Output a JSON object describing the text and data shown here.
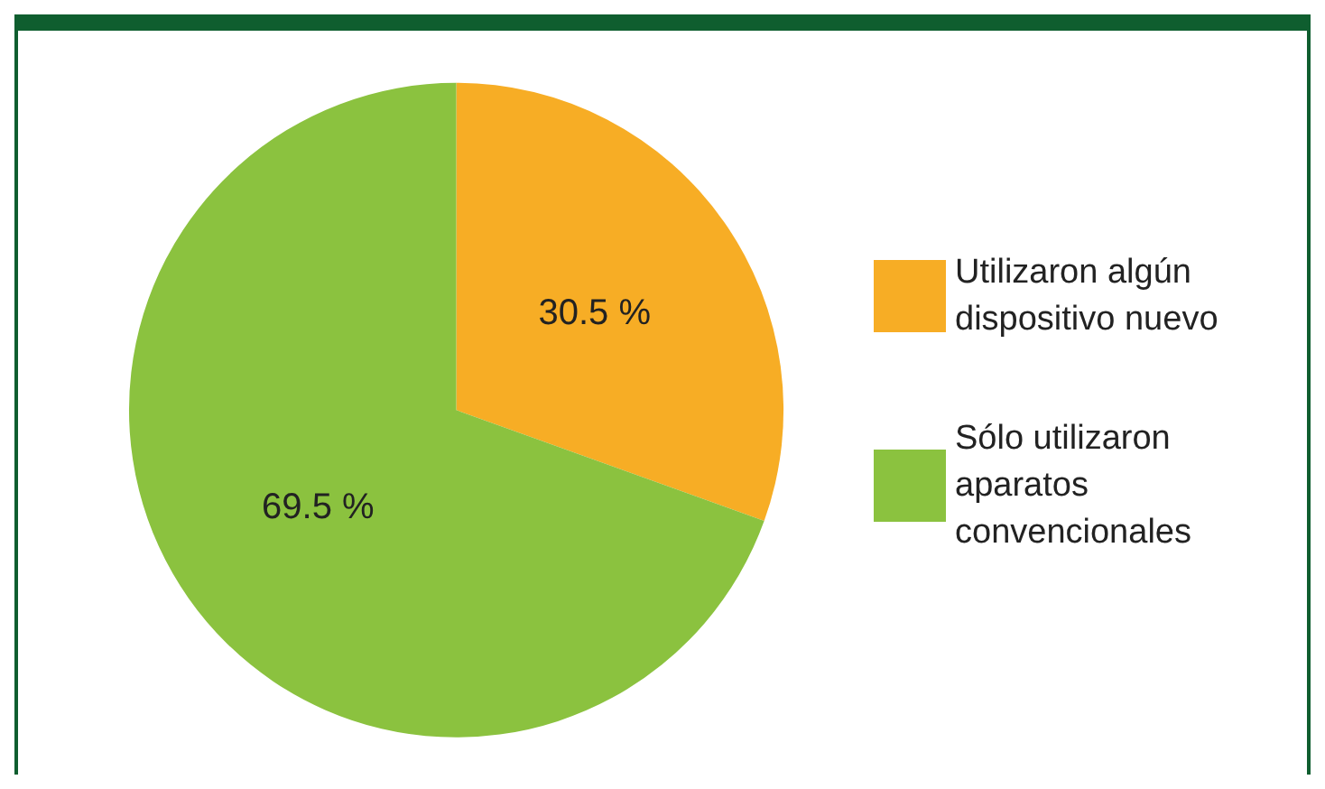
{
  "chart_data": {
    "type": "pie",
    "categories": [
      "Utilizaron algún dispositivo nuevo",
      "Sólo utilizaron aparatos convencionales"
    ],
    "values": [
      30.5,
      69.5
    ],
    "colors": [
      "#f7ad25",
      "#8bc23f"
    ],
    "value_labels": [
      "30.5 %",
      "69.5 %"
    ],
    "legend": "right"
  }
}
